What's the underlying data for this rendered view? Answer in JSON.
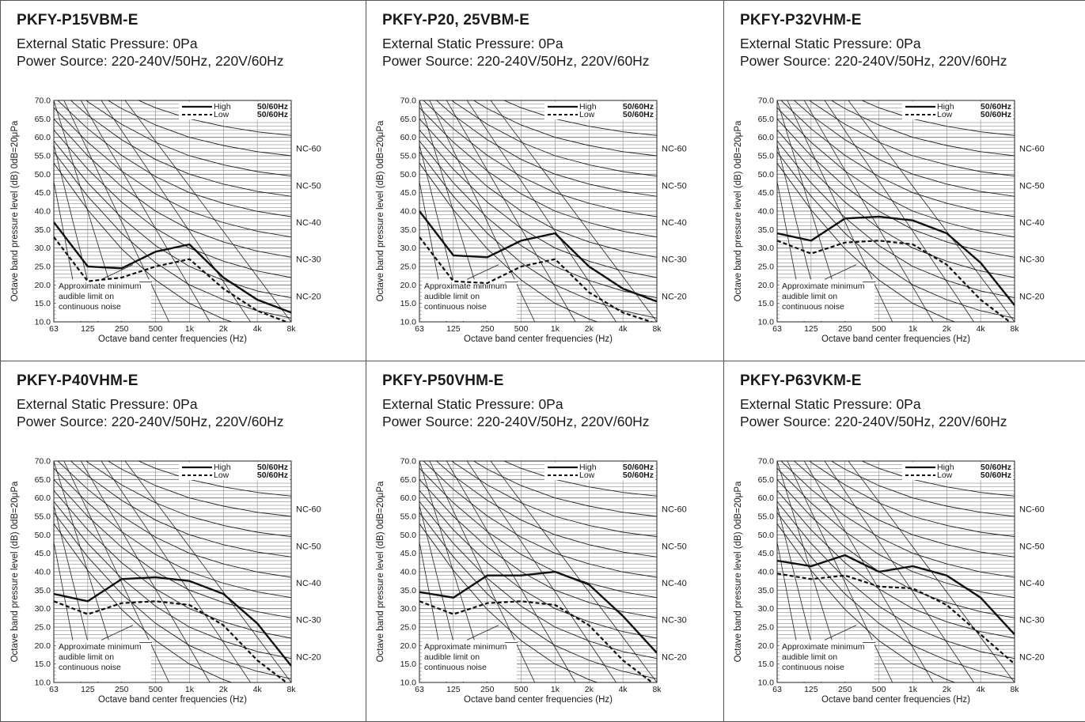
{
  "common": {
    "pressure_label": "External Static Pressure: 0Pa",
    "power_label": "Power Source: 220-240V/50Hz, 220V/60Hz",
    "ylabel": "Octave band pressure level (dB) 0dB=20μPa",
    "xlabel": "Octave band center frequencies (Hz)",
    "x_ticks": [
      "63",
      "125",
      "250",
      "500",
      "1k",
      "2k",
      "4k",
      "8k"
    ],
    "y_ticks": [
      "10.0",
      "15.0",
      "20.0",
      "25.0",
      "30.0",
      "35.0",
      "40.0",
      "45.0",
      "50.0",
      "55.0",
      "60.0",
      "65.0",
      "70.0"
    ],
    "ylim": [
      10,
      70
    ],
    "nc_labels": [
      "NC-60",
      "NC-50",
      "NC-40",
      "NC-30",
      "NC-20"
    ],
    "legend_high": "High",
    "legend_low": "Low",
    "legend_freq": "50/60Hz",
    "annotation": [
      "Approximate minimum",
      "audible limit on",
      "continuous noise"
    ],
    "colors": {
      "line": "#1a1a1a",
      "grid": "#555555",
      "border": "#555555"
    }
  },
  "chart_data": [
    {
      "type": "line",
      "title": "PKFY-P15VBM-E",
      "categories": [
        "63",
        "125",
        "250",
        "500",
        "1k",
        "2k",
        "4k",
        "8k"
      ],
      "series": [
        {
          "name": "High",
          "values": [
            37,
            25,
            24.5,
            29,
            31,
            22,
            16,
            12.5
          ]
        },
        {
          "name": "Low",
          "values": [
            33,
            21,
            22,
            25,
            27,
            19,
            13,
            9.5
          ]
        }
      ],
      "ylim": [
        10,
        70
      ]
    },
    {
      "type": "line",
      "title": "PKFY-P20, 25VBM-E",
      "categories": [
        "63",
        "125",
        "250",
        "500",
        "1k",
        "2k",
        "4k",
        "8k"
      ],
      "series": [
        {
          "name": "High",
          "values": [
            40,
            28,
            27.5,
            32,
            34,
            25,
            19,
            15.5
          ]
        },
        {
          "name": "Low",
          "values": [
            33,
            21,
            20.5,
            25,
            27,
            18,
            12.5,
            9.5
          ]
        }
      ],
      "ylim": [
        10,
        70
      ]
    },
    {
      "type": "line",
      "title": "PKFY-P32VHM-E",
      "categories": [
        "63",
        "125",
        "250",
        "500",
        "1k",
        "2k",
        "4k",
        "8k"
      ],
      "series": [
        {
          "name": "High",
          "values": [
            34,
            32,
            38,
            38.5,
            37.5,
            34,
            26,
            14.5
          ]
        },
        {
          "name": "Low",
          "values": [
            32,
            28.5,
            31.5,
            32,
            31,
            25.5,
            16,
            9
          ]
        }
      ],
      "ylim": [
        10,
        70
      ]
    },
    {
      "type": "line",
      "title": "PKFY-P40VHM-E",
      "categories": [
        "63",
        "125",
        "250",
        "500",
        "1k",
        "2k",
        "4k",
        "8k"
      ],
      "series": [
        {
          "name": "High",
          "values": [
            34,
            32,
            38,
            38.5,
            37.5,
            34,
            26,
            14.5
          ]
        },
        {
          "name": "Low",
          "values": [
            32,
            28.5,
            31.5,
            32,
            31,
            25.5,
            16,
            9
          ]
        }
      ],
      "ylim": [
        10,
        70
      ]
    },
    {
      "type": "line",
      "title": "PKFY-P50VHM-E",
      "categories": [
        "63",
        "125",
        "250",
        "500",
        "1k",
        "2k",
        "4k",
        "8k"
      ],
      "series": [
        {
          "name": "High",
          "values": [
            34.5,
            33,
            39,
            39,
            40,
            36.5,
            28,
            18
          ]
        },
        {
          "name": "Low",
          "values": [
            32,
            28.5,
            31.5,
            32,
            31,
            25.5,
            16,
            9
          ]
        }
      ],
      "ylim": [
        10,
        70
      ]
    },
    {
      "type": "line",
      "title": "PKFY-P63VKM-E",
      "categories": [
        "63",
        "125",
        "250",
        "500",
        "1k",
        "2k",
        "4k",
        "8k"
      ],
      "series": [
        {
          "name": "High",
          "values": [
            43,
            41.5,
            44.5,
            40,
            41.5,
            39,
            33,
            23
          ]
        },
        {
          "name": "Low",
          "values": [
            39.5,
            38,
            39,
            36,
            35.5,
            31,
            23,
            15
          ]
        }
      ],
      "ylim": [
        10,
        70
      ]
    }
  ]
}
